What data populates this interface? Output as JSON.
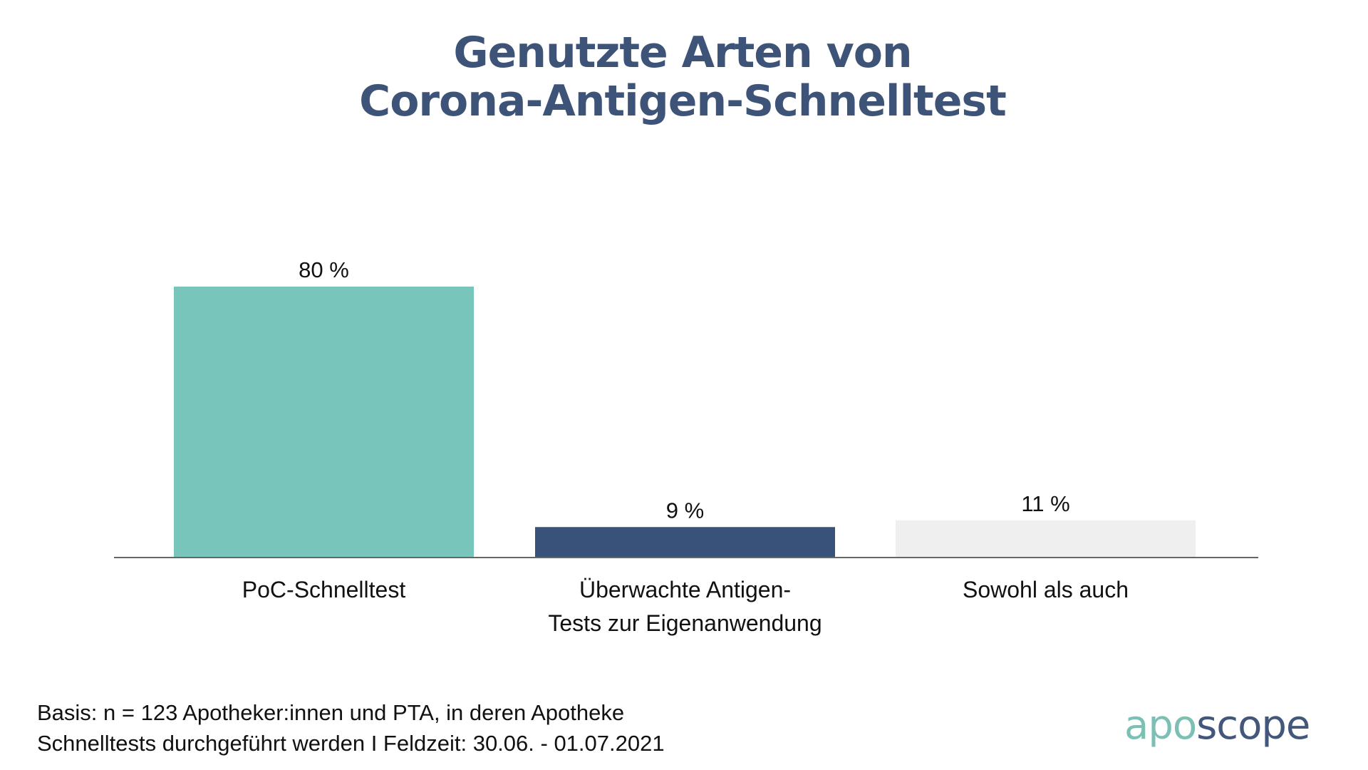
{
  "chart_data": {
    "type": "bar",
    "title": "Genutzte Arten von Corona-Antigen-Schnelltest",
    "title_lines": [
      "Genutzte Arten von",
      "Corona-Antigen-Schnelltest"
    ],
    "categories": [
      [
        "PoC-Schnelltest"
      ],
      [
        "Überwachte Antigen-",
        "Tests zur Eigenanwendung"
      ],
      [
        "Sowohl als auch"
      ]
    ],
    "category_names": [
      "PoC-Schnelltest",
      "Überwachte Antigen-Tests zur Eigenanwendung",
      "Sowohl als auch"
    ],
    "values": [
      80,
      9,
      11
    ],
    "value_labels": [
      "80 %",
      "9 %",
      "11 %"
    ],
    "unit": "%",
    "colors": [
      "#77c5bb",
      "#38527a",
      "#efefef"
    ],
    "xlabel": "",
    "ylabel": "",
    "ylim": [
      0,
      80
    ],
    "grid": false,
    "legend": "none"
  },
  "footnote": {
    "lines": [
      "Basis: n = 123 Apotheker:innen und PTA, in deren Apotheke",
      "Schnelltests durchgeführt werden I Feldzeit: 30.06. - 01.07.2021"
    ]
  },
  "logo": {
    "part1": "apo",
    "part2": "scope",
    "color1": "#7bbfb5",
    "color2": "#43577c"
  },
  "colors": {
    "title": "#3d5378",
    "axis": "#666666"
  }
}
